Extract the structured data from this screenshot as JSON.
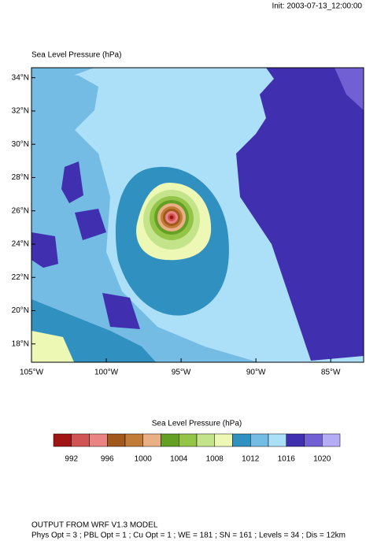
{
  "header": {
    "init": "Init: 2003-07-13_12:00:00"
  },
  "map": {
    "title": "Sea Level Pressure",
    "units": "(hPa)",
    "lonlim": [
      -105,
      -82.8
    ],
    "latlim": [
      16.9,
      34.6
    ],
    "xticks": [
      {
        "value": -105,
        "label": "105°W"
      },
      {
        "value": -100,
        "label": "100°W"
      },
      {
        "value": -95,
        "label": "95°W"
      },
      {
        "value": -90,
        "label": "90°W"
      },
      {
        "value": -85,
        "label": "85°W"
      }
    ],
    "yticks": [
      {
        "value": 34,
        "label": "34°N"
      },
      {
        "value": 32,
        "label": "32°N"
      },
      {
        "value": 30,
        "label": "30°N"
      },
      {
        "value": 28,
        "label": "28°N"
      },
      {
        "value": 26,
        "label": "26°N"
      },
      {
        "value": 24,
        "label": "24°N"
      },
      {
        "value": 22,
        "label": "22°N"
      },
      {
        "value": 20,
        "label": "20°N"
      },
      {
        "value": 18,
        "label": "18°N"
      }
    ]
  },
  "colorbar": {
    "title": "Sea Level Pressure  (hPa)",
    "range": [
      990,
      1022
    ],
    "colors": [
      "#a01414",
      "#d05454",
      "#e88484",
      "#a0581c",
      "#c07c38",
      "#e8b084",
      "#64a024",
      "#94c448",
      "#c4e48c",
      "#ecf8b4",
      "#3090c0",
      "#74bce4",
      "#acdff8",
      "#4030b0",
      "#7060d4",
      "#b4acf4"
    ],
    "ticks": [
      992,
      996,
      1000,
      1004,
      1008,
      1012,
      1016,
      1020
    ]
  },
  "footer": {
    "line1": "OUTPUT FROM WRF V1.3 MODEL",
    "line2": "Phys Opt = 3 ; PBL Opt = 1 ; Cu Opt = 1 ; WE = 181 ; SN = 161 ; Levels = 34 ; Dis = 12km"
  }
}
